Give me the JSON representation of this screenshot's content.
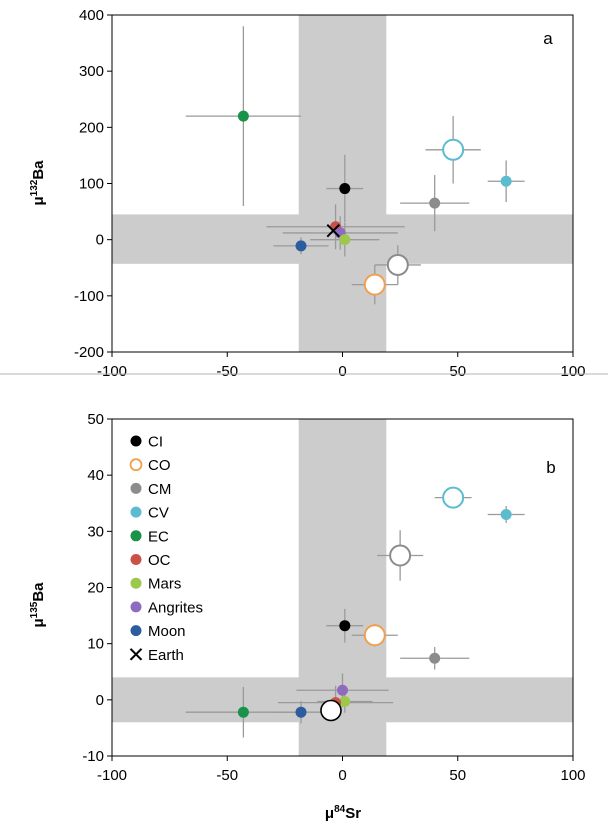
{
  "colors": {
    "CI": "#000000",
    "CO": "#f0a050",
    "CM": "#8c8c8c",
    "CV": "#5bbccf",
    "EC": "#19924a",
    "OC": "#c8524a",
    "Mars": "#9cc94c",
    "Angrites": "#8e6bbf",
    "Moon": "#2c5d9f",
    "Earth": "#000000",
    "band": "#cccccc",
    "errorbar": "#9a9a9a"
  },
  "chart_data": [
    {
      "type": "scatter",
      "panel_label": "a",
      "xlabel": "",
      "ylabel": "μ¹³²Ba",
      "ylabel_prefix": "μ",
      "ylabel_sup": "132",
      "ylabel_suffix": "Ba",
      "xlim": [
        -100,
        100
      ],
      "ylim": [
        -200,
        400
      ],
      "xticks": [
        -100,
        -50,
        0,
        50,
        100
      ],
      "yticks": [
        -200,
        -100,
        0,
        100,
        200,
        300,
        400
      ],
      "xtick_labels": [
        "-100",
        "-50",
        "0",
        "50",
        "100"
      ],
      "ytick_labels": [
        "-200",
        "-100",
        "0",
        "100",
        "200",
        "300",
        "400"
      ],
      "grid": false,
      "bands": {
        "vertical_x": [
          -19,
          19
        ],
        "horizontal_y": [
          -43,
          45
        ]
      },
      "points": [
        {
          "group": "EC",
          "x": -43,
          "y": 220,
          "xerr": 25,
          "yerr": 160,
          "hollow": false,
          "big": false
        },
        {
          "group": "CI",
          "x": 1,
          "y": 91,
          "xerr": 8,
          "yerr": 60,
          "hollow": false,
          "big": false
        },
        {
          "group": "CM",
          "x": 40,
          "y": 65,
          "xerr": 15,
          "yerr": 50,
          "hollow": false,
          "big": false
        },
        {
          "group": "CV",
          "x": 48,
          "y": 160,
          "xerr": 12,
          "yerr": 60,
          "hollow": true,
          "big": true
        },
        {
          "group": "CV",
          "x": 71,
          "y": 104,
          "xerr": 8,
          "yerr": 37,
          "hollow": false,
          "big": false
        },
        {
          "group": "OC",
          "x": -3,
          "y": 23,
          "xerr": 30,
          "yerr": 40,
          "hollow": false,
          "big": false
        },
        {
          "group": "Angrites",
          "x": -1,
          "y": 12,
          "xerr": 25,
          "yerr": 30,
          "hollow": false,
          "big": false
        },
        {
          "group": "Mars",
          "x": 1,
          "y": 0,
          "xerr": 15,
          "yerr": 30,
          "hollow": false,
          "big": false
        },
        {
          "group": "Moon",
          "x": -18,
          "y": -11,
          "xerr": 12,
          "yerr": 15,
          "hollow": false,
          "big": false
        },
        {
          "group": "Earth",
          "x": -4,
          "y": 16,
          "xerr": 0,
          "yerr": 0,
          "hollow": false,
          "big": false,
          "marker": "x"
        },
        {
          "group": "CM",
          "x": 24,
          "y": -45,
          "xerr": 10,
          "yerr": 35,
          "hollow": true,
          "big": true
        },
        {
          "group": "CO",
          "x": 14,
          "y": -80,
          "xerr": 10,
          "yerr": 35,
          "hollow": true,
          "big": true
        }
      ]
    },
    {
      "type": "scatter",
      "panel_label": "b",
      "xlabel": "μ⁸⁴Sr",
      "xlabel_prefix": "μ",
      "xlabel_sup": "84",
      "xlabel_suffix": "Sr",
      "ylabel": "μ¹³⁵Ba",
      "ylabel_prefix": "μ",
      "ylabel_sup": "135",
      "ylabel_suffix": "Ba",
      "xlim": [
        -100,
        100
      ],
      "ylim": [
        -10,
        50
      ],
      "xticks": [
        -100,
        -50,
        0,
        50,
        100
      ],
      "yticks": [
        -10,
        0,
        10,
        20,
        30,
        40,
        50
      ],
      "xtick_labels": [
        "-100",
        "-50",
        "0",
        "50",
        "100"
      ],
      "ytick_labels": [
        "-10",
        "0",
        "10",
        "20",
        "30",
        "40",
        "50"
      ],
      "grid": false,
      "bands": {
        "vertical_x": [
          -19,
          19
        ],
        "horizontal_y": [
          -4,
          4
        ]
      },
      "legend_position": "top-left",
      "legend": [
        {
          "label": "CI",
          "group": "CI",
          "style": "filled"
        },
        {
          "label": "CO",
          "group": "CO",
          "style": "hollow"
        },
        {
          "label": "CM",
          "group": "CM",
          "style": "filled"
        },
        {
          "label": "CV",
          "group": "CV",
          "style": "filled"
        },
        {
          "label": "EC",
          "group": "EC",
          "style": "filled"
        },
        {
          "label": "OC",
          "group": "OC",
          "style": "filled"
        },
        {
          "label": "Mars",
          "group": "Mars",
          "style": "filled"
        },
        {
          "label": "Angrites",
          "group": "Angrites",
          "style": "filled"
        },
        {
          "label": "Moon",
          "group": "Moon",
          "style": "filled"
        },
        {
          "label": "Earth",
          "group": "Earth",
          "style": "x"
        }
      ],
      "points": [
        {
          "group": "CV",
          "x": 48,
          "y": 36,
          "xerr": 8,
          "yerr": 1,
          "hollow": true,
          "big": true
        },
        {
          "group": "CV",
          "x": 71,
          "y": 33,
          "xerr": 8,
          "yerr": 1.5,
          "hollow": false,
          "big": false
        },
        {
          "group": "CM",
          "x": 25,
          "y": 25.7,
          "xerr": 10,
          "yerr": 4.5,
          "hollow": true,
          "big": true
        },
        {
          "group": "CI",
          "x": 1,
          "y": 13.2,
          "xerr": 8,
          "yerr": 3,
          "hollow": false,
          "big": false
        },
        {
          "group": "CO",
          "x": 14,
          "y": 11.5,
          "xerr": 10,
          "yerr": 2,
          "hollow": true,
          "big": true
        },
        {
          "group": "CM",
          "x": 40,
          "y": 7.4,
          "xerr": 15,
          "yerr": 2,
          "hollow": false,
          "big": false
        },
        {
          "group": "Angrites",
          "x": 0,
          "y": 1.7,
          "xerr": 20,
          "yerr": 3,
          "hollow": false,
          "big": false
        },
        {
          "group": "Mars",
          "x": 1,
          "y": -0.3,
          "xerr": 12,
          "yerr": 2,
          "hollow": false,
          "big": false
        },
        {
          "group": "OC",
          "x": -3,
          "y": -0.5,
          "xerr": 25,
          "yerr": 3,
          "hollow": false,
          "big": false
        },
        {
          "group": "EC",
          "x": -43,
          "y": -2.2,
          "xerr": 25,
          "yerr": 4.5,
          "hollow": false,
          "big": false
        },
        {
          "group": "Moon",
          "x": -18,
          "y": -2.2,
          "xerr": 12,
          "yerr": 2,
          "hollow": false,
          "big": false
        },
        {
          "group": "Earth",
          "x": -5,
          "y": -1.9,
          "xerr": 0,
          "yerr": 0,
          "hollow": true,
          "big": true,
          "earthOpen": true
        }
      ]
    }
  ]
}
